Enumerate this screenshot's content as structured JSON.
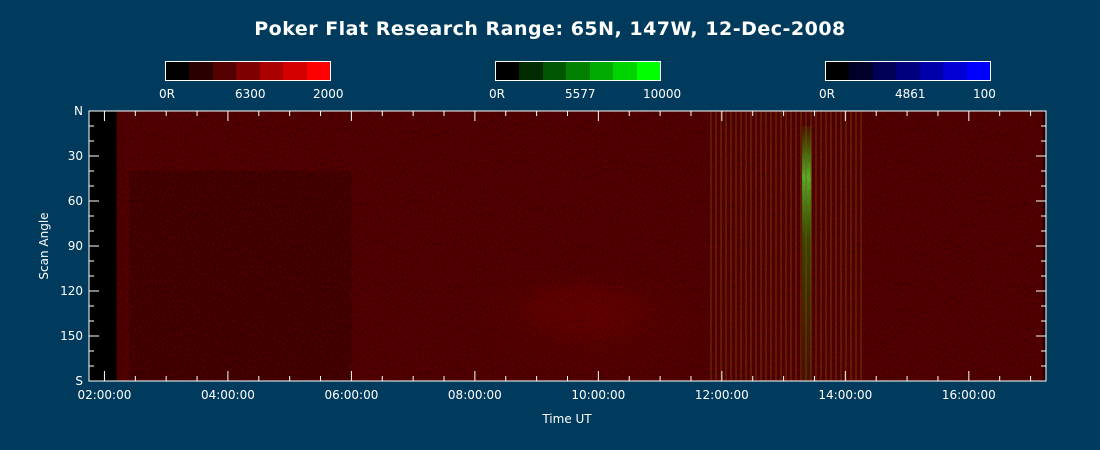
{
  "title": "Poker Flat Research Range: 65N, 147W, 12-Dec-2008",
  "colorbars": [
    {
      "min_label": "0R",
      "mid_label": "6300",
      "max_label": "2000",
      "colors": [
        "#000000",
        "#2a0000",
        "#550000",
        "#7f0000",
        "#aa0000",
        "#d40000",
        "#ff0000"
      ]
    },
    {
      "min_label": "0R",
      "mid_label": "5577",
      "max_label": "10000",
      "colors": [
        "#000000",
        "#002a00",
        "#005500",
        "#007f00",
        "#00aa00",
        "#00d400",
        "#00ff00"
      ]
    },
    {
      "min_label": "0R",
      "mid_label": "4861",
      "max_label": "100",
      "colors": [
        "#000000",
        "#00002a",
        "#000055",
        "#00007f",
        "#0000aa",
        "#0000d4",
        "#0000ff"
      ]
    }
  ],
  "chart_data": {
    "type": "heatmap",
    "title": "Poker Flat Research Range: 65N, 147W, 12-Dec-2008",
    "xlabel": "Time UT",
    "ylabel": "Scan Angle",
    "xlim_hours": [
      1.75,
      17.25
    ],
    "x_ticks": [
      {
        "hour": 2,
        "label": "02:00:00"
      },
      {
        "hour": 4,
        "label": "04:00:00"
      },
      {
        "hour": 6,
        "label": "06:00:00"
      },
      {
        "hour": 8,
        "label": "08:00:00"
      },
      {
        "hour": 10,
        "label": "10:00:00"
      },
      {
        "hour": 12,
        "label": "12:00:00"
      },
      {
        "hour": 14,
        "label": "14:00:00"
      },
      {
        "hour": 16,
        "label": "16:00:00"
      }
    ],
    "ylim": [
      0,
      180
    ],
    "y_ticks": [
      {
        "value": 0,
        "label": "N"
      },
      {
        "value": 30,
        "label": "30"
      },
      {
        "value": 60,
        "label": "60"
      },
      {
        "value": 90,
        "label": "90"
      },
      {
        "value": 120,
        "label": "120"
      },
      {
        "value": 150,
        "label": "150"
      },
      {
        "value": 180,
        "label": "S"
      }
    ],
    "channels": [
      "6300",
      "5577",
      "4861"
    ],
    "features": [
      {
        "channel": "6300",
        "hour_start": 8.5,
        "hour_end": 11.0,
        "angle_start": 110,
        "angle_end": 155,
        "level": 0.95
      },
      {
        "channel": "6300",
        "hour_start": 7.8,
        "hour_end": 12.0,
        "angle_start": 95,
        "angle_end": 180,
        "level": 0.55
      },
      {
        "channel": "6300",
        "hour_start": 2.2,
        "hour_end": 17.2,
        "angle_start": 0,
        "angle_end": 180,
        "level": 0.3
      },
      {
        "channel": "5577",
        "hour_start": 13.3,
        "hour_end": 13.45,
        "angle_start": 10,
        "angle_end": 180,
        "level": 0.6
      }
    ]
  }
}
